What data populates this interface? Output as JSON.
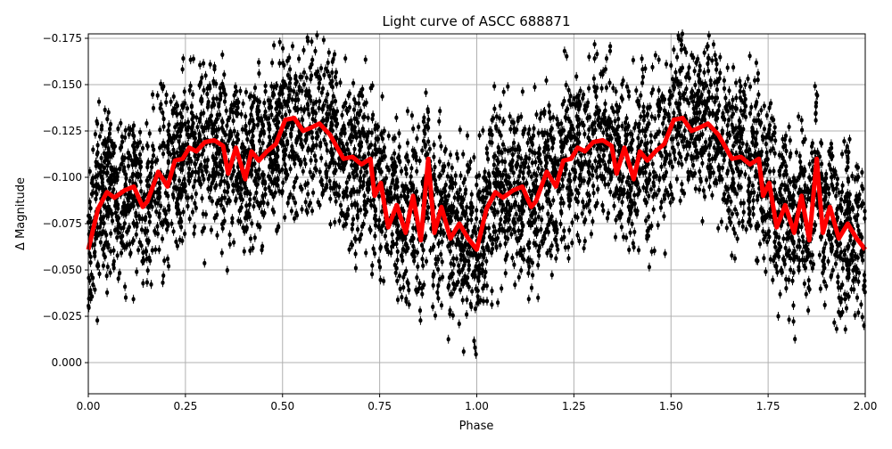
{
  "chart_data": {
    "type": "scatter",
    "title": "Light curve of ASCC 688871",
    "xlabel": "Phase",
    "ylabel": "Δ Magnitude",
    "xlim": [
      0,
      2
    ],
    "ylim": [
      0.0168,
      -0.1774
    ],
    "y_inverted": true,
    "grid": true,
    "xticks": [
      "0.00",
      "0.25",
      "0.50",
      "0.75",
      "1.00",
      "1.25",
      "1.50",
      "1.75",
      "2.00"
    ],
    "xtick_values": [
      0,
      0.25,
      0.5,
      0.75,
      1,
      1.25,
      1.5,
      1.75,
      2
    ],
    "yticks": [
      "−0.175",
      "−0.150",
      "−0.125",
      "−0.100",
      "−0.075",
      "−0.050",
      "−0.025",
      "0.000"
    ],
    "ytick_values": [
      -0.175,
      -0.15,
      -0.125,
      -0.1,
      -0.075,
      -0.05,
      -0.025,
      0
    ],
    "colors": {
      "data_points": "#000000",
      "model": "#ff0000",
      "grid": "#b0b0b0"
    },
    "series": [
      {
        "kind": "points-with-errorbars",
        "color": "#000000",
        "approx_range": [
          -0.178,
          0.017
        ]
      },
      {
        "kind": "model-line",
        "color": "#ff0000",
        "phase": [
          0,
          0.025,
          0.048,
          0.067,
          0.094,
          0.117,
          0.14,
          0.152,
          0.18,
          0.204,
          0.223,
          0.243,
          0.26,
          0.278,
          0.3,
          0.324,
          0.347,
          0.36,
          0.38,
          0.404,
          0.42,
          0.439,
          0.46,
          0.483,
          0.507,
          0.53,
          0.553,
          0.576,
          0.595,
          0.622,
          0.657,
          0.68,
          0.703,
          0.726,
          0.737,
          0.753,
          0.772,
          0.794,
          0.817,
          0.836,
          0.856,
          0.875,
          0.891,
          0.909,
          0.932,
          0.955,
          0.978,
          1.0
        ],
        "magnitude": [
          -0.061,
          -0.083,
          -0.092,
          -0.089,
          -0.093,
          -0.095,
          -0.084,
          -0.087,
          -0.103,
          -0.095,
          -0.109,
          -0.11,
          -0.116,
          -0.114,
          -0.119,
          -0.12,
          -0.117,
          -0.102,
          -0.116,
          -0.099,
          -0.114,
          -0.109,
          -0.114,
          -0.118,
          -0.131,
          -0.132,
          -0.125,
          -0.127,
          -0.129,
          -0.123,
          -0.11,
          -0.111,
          -0.107,
          -0.11,
          -0.09,
          -0.097,
          -0.073,
          -0.085,
          -0.07,
          -0.09,
          -0.066,
          -0.11,
          -0.07,
          -0.084,
          -0.067,
          -0.075,
          -0.067,
          -0.061
        ]
      }
    ]
  }
}
